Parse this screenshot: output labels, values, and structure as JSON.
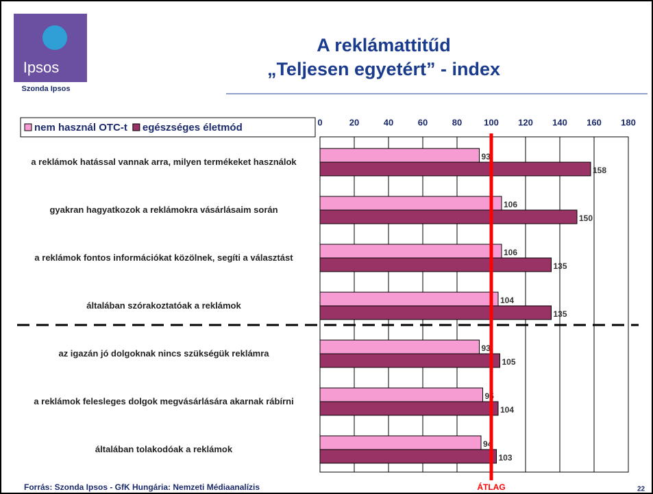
{
  "chart_data": {
    "type": "bar",
    "orientation": "horizontal",
    "title": "A reklámattitűd",
    "subtitle": "„Teljesen egyetért” - index",
    "categories": [
      "a reklámok hatással vannak arra, milyen termékeket használok",
      "gyakran hagyatkozok a reklámokra vásárlásaim során",
      "a reklámok fontos információkat közölnek, segíti a választást",
      "általában szórakoztatóak a reklámok",
      "az igazán jó dolgoknak nincs szükségük reklámra",
      "a reklámok felesleges dolgok megvásárlására akarnak rábírni",
      "általában tolakodóak a reklámok"
    ],
    "series": [
      {
        "name": "nem használ OTC-t",
        "color": "#f79bd3",
        "values": [
          93,
          106,
          106,
          104,
          93,
          95,
          94
        ]
      },
      {
        "name": "egészséges életmód",
        "color": "#993366",
        "values": [
          158,
          150,
          135,
          135,
          105,
          104,
          103
        ]
      }
    ],
    "xlim": [
      0,
      180
    ],
    "xticks": [
      0,
      20,
      40,
      60,
      80,
      100,
      120,
      140,
      160,
      180
    ],
    "grid": true,
    "legend": "top-left",
    "reference_line": {
      "value": 100,
      "label": "ÁTLAG",
      "color": "#ff0000"
    }
  },
  "logo": {
    "text": "Ipsos",
    "caption": "Szonda Ipsos"
  },
  "footer": {
    "source": "Forrás: Szonda Ipsos - GfK Hungária: Nemzeti Médiaanalízis",
    "page": 22
  }
}
